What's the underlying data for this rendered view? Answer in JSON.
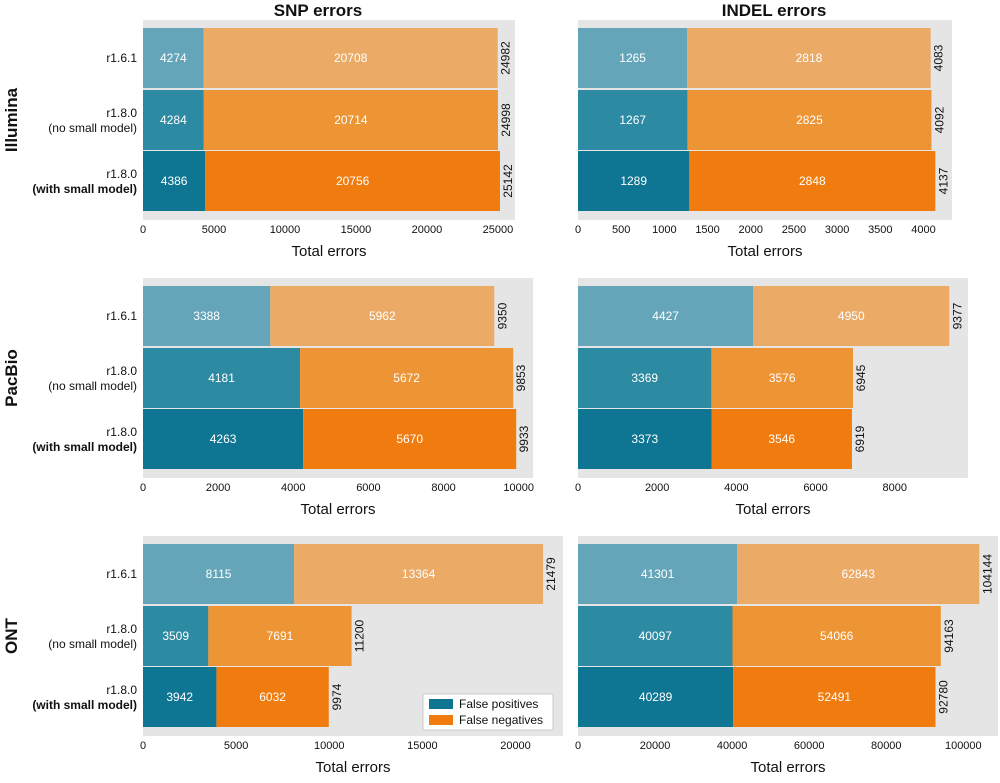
{
  "colors": {
    "background": "#e5e5e5",
    "fp": [
      "#64a5b9",
      "#2d8aa3",
      "#0e7592"
    ],
    "fn": [
      "#ebaa66",
      "#ed9434",
      "#f07c10"
    ]
  },
  "col_titles": [
    "SNP errors",
    "INDEL errors"
  ],
  "row_titles": [
    "Illumina",
    "PacBio",
    "ONT"
  ],
  "x_label": "Total errors",
  "legend": {
    "fp_label": "False positives",
    "fn_label": "False negatives"
  },
  "chart_data": [
    {
      "type": "bar",
      "stacked": true,
      "orientation": "horizontal",
      "title": "SNP errors",
      "group": "Illumina",
      "xlabel": "Total errors",
      "categories": [
        {
          "line1": "r1.6.1",
          "line2": "",
          "bold": false
        },
        {
          "line1": "r1.8.0",
          "line2": "(no small model)",
          "bold": false
        },
        {
          "line1": "r1.8.0",
          "line2": "(with small model)",
          "bold": true
        }
      ],
      "series": [
        {
          "name": "False positives",
          "values": [
            4274,
            4284,
            4386
          ]
        },
        {
          "name": "False negatives",
          "values": [
            20708,
            20714,
            20756
          ]
        }
      ],
      "totals": [
        24982,
        24998,
        25142
      ],
      "xlim": [
        0,
        26200
      ],
      "xticks": [
        0,
        5000,
        10000,
        15000,
        20000,
        25000
      ]
    },
    {
      "type": "bar",
      "stacked": true,
      "orientation": "horizontal",
      "title": "INDEL errors",
      "group": "Illumina",
      "xlabel": "Total errors",
      "categories": [
        {
          "line1": "r1.6.1",
          "line2": "",
          "bold": false
        },
        {
          "line1": "r1.8.0",
          "line2": "(no small model)",
          "bold": false
        },
        {
          "line1": "r1.8.0",
          "line2": "(with small model)",
          "bold": true
        }
      ],
      "series": [
        {
          "name": "False positives",
          "values": [
            1265,
            1267,
            1289
          ]
        },
        {
          "name": "False negatives",
          "values": [
            2818,
            2825,
            2848
          ]
        }
      ],
      "totals": [
        4083,
        4092,
        4137
      ],
      "xlim": [
        0,
        4330
      ],
      "xticks": [
        0,
        500,
        1000,
        1500,
        2000,
        2500,
        3000,
        3500,
        4000
      ]
    },
    {
      "type": "bar",
      "stacked": true,
      "orientation": "horizontal",
      "title": "SNP errors",
      "group": "PacBio",
      "xlabel": "Total errors",
      "categories": [
        {
          "line1": "r1.6.1",
          "line2": "",
          "bold": false
        },
        {
          "line1": "r1.8.0",
          "line2": "(no small model)",
          "bold": false
        },
        {
          "line1": "r1.8.0",
          "line2": "(with small model)",
          "bold": true
        }
      ],
      "series": [
        {
          "name": "False positives",
          "values": [
            3388,
            4181,
            4263
          ]
        },
        {
          "name": "False negatives",
          "values": [
            5962,
            5672,
            5670
          ]
        }
      ],
      "totals": [
        9350,
        9853,
        9933
      ],
      "xlim": [
        0,
        10380
      ],
      "xticks": [
        0,
        2000,
        4000,
        6000,
        8000,
        10000
      ]
    },
    {
      "type": "bar",
      "stacked": true,
      "orientation": "horizontal",
      "title": "INDEL errors",
      "group": "PacBio",
      "xlabel": "Total errors",
      "categories": [
        {
          "line1": "r1.6.1",
          "line2": "",
          "bold": false
        },
        {
          "line1": "r1.8.0",
          "line2": "(no small model)",
          "bold": false
        },
        {
          "line1": "r1.8.0",
          "line2": "(with small model)",
          "bold": true
        }
      ],
      "series": [
        {
          "name": "False positives",
          "values": [
            4427,
            3369,
            3373
          ]
        },
        {
          "name": "False negatives",
          "values": [
            4950,
            3576,
            3546
          ]
        }
      ],
      "totals": [
        9377,
        6945,
        6919
      ],
      "xlim": [
        0,
        9850
      ],
      "xticks": [
        0,
        2000,
        4000,
        6000,
        8000
      ]
    },
    {
      "type": "bar",
      "stacked": true,
      "orientation": "horizontal",
      "title": "SNP errors",
      "group": "ONT",
      "xlabel": "Total errors",
      "categories": [
        {
          "line1": "r1.6.1",
          "line2": "",
          "bold": false
        },
        {
          "line1": "r1.8.0",
          "line2": "(no small model)",
          "bold": false
        },
        {
          "line1": "r1.8.0",
          "line2": "(with small model)",
          "bold": true
        }
      ],
      "series": [
        {
          "name": "False positives",
          "values": [
            8115,
            3509,
            3942
          ]
        },
        {
          "name": "False negatives",
          "values": [
            13364,
            7691,
            6032
          ]
        }
      ],
      "totals": [
        21479,
        11200,
        9974
      ],
      "xlim": [
        0,
        22550
      ],
      "xticks": [
        0,
        5000,
        10000,
        15000,
        20000
      ],
      "legend_position": "lower-right"
    },
    {
      "type": "bar",
      "stacked": true,
      "orientation": "horizontal",
      "title": "INDEL errors",
      "group": "ONT",
      "xlabel": "Total errors",
      "categories": [
        {
          "line1": "r1.6.1",
          "line2": "",
          "bold": false
        },
        {
          "line1": "r1.8.0",
          "line2": "(no small model)",
          "bold": false
        },
        {
          "line1": "r1.8.0",
          "line2": "(with small model)",
          "bold": true
        }
      ],
      "series": [
        {
          "name": "False positives",
          "values": [
            41301,
            40097,
            40289
          ]
        },
        {
          "name": "False negatives",
          "values": [
            62843,
            54066,
            52491
          ]
        }
      ],
      "totals": [
        104144,
        94163,
        92780
      ],
      "xlim": [
        0,
        109000
      ],
      "xticks": [
        0,
        20000,
        40000,
        60000,
        80000,
        100000
      ]
    }
  ]
}
